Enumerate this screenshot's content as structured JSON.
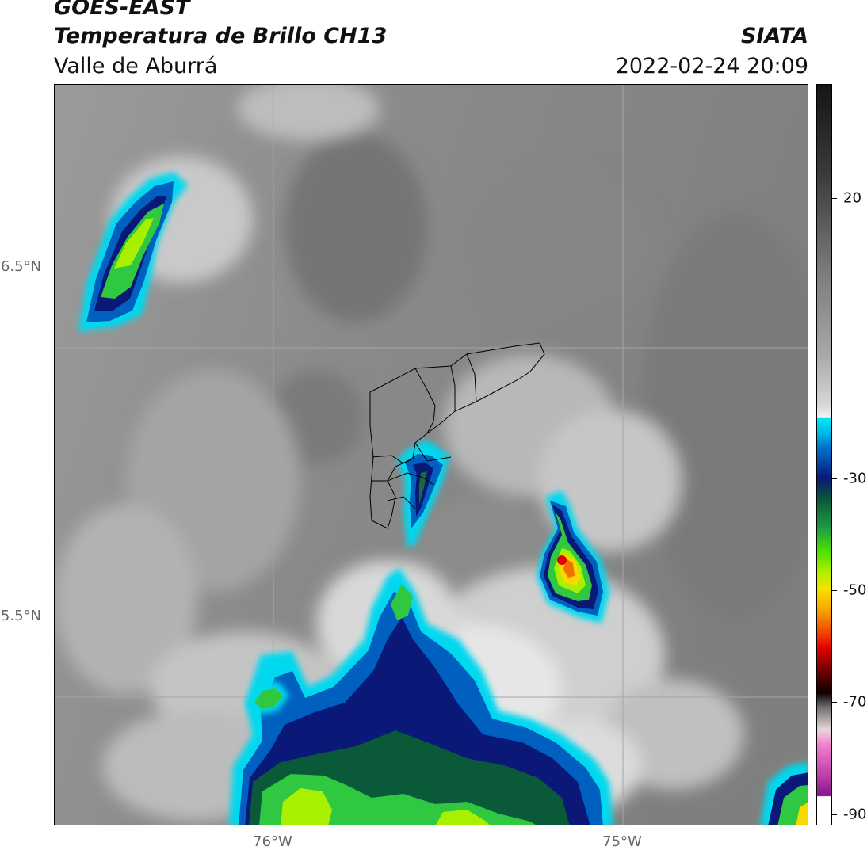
{
  "header": {
    "satellite": "GOES-EAST",
    "product": "Temperatura de Brillo CH13",
    "region": "Valle de Aburrá",
    "organization": "SIATA",
    "datetime": "2022-02-24 20:09"
  },
  "map": {
    "lat_labels": [
      "6.5°N",
      "5.5°N"
    ],
    "lon_labels": [
      "76°W",
      "75°W"
    ],
    "background_color": "#8d8d8d",
    "gridline_color": "#a6a6a6",
    "boundary_color": "#000000"
  },
  "colorbar": {
    "tick_labels": [
      "20",
      "-30",
      "-50",
      "-70",
      "-90"
    ],
    "colors": {
      "warm_black": "#151515",
      "gray_mid": "#8a8a8a",
      "white": "#f2f2f2",
      "cyan": "#00d8ef",
      "blue": "#0060c0",
      "navy": "#0a1878",
      "green_dark": "#0a5a3a",
      "green": "#30c840",
      "lime": "#a8f000",
      "yellow": "#f8d800",
      "orange": "#f07000",
      "red": "#e00000",
      "dark_red": "#600000",
      "magenta": "#e050c0",
      "purple": "#801890"
    }
  }
}
